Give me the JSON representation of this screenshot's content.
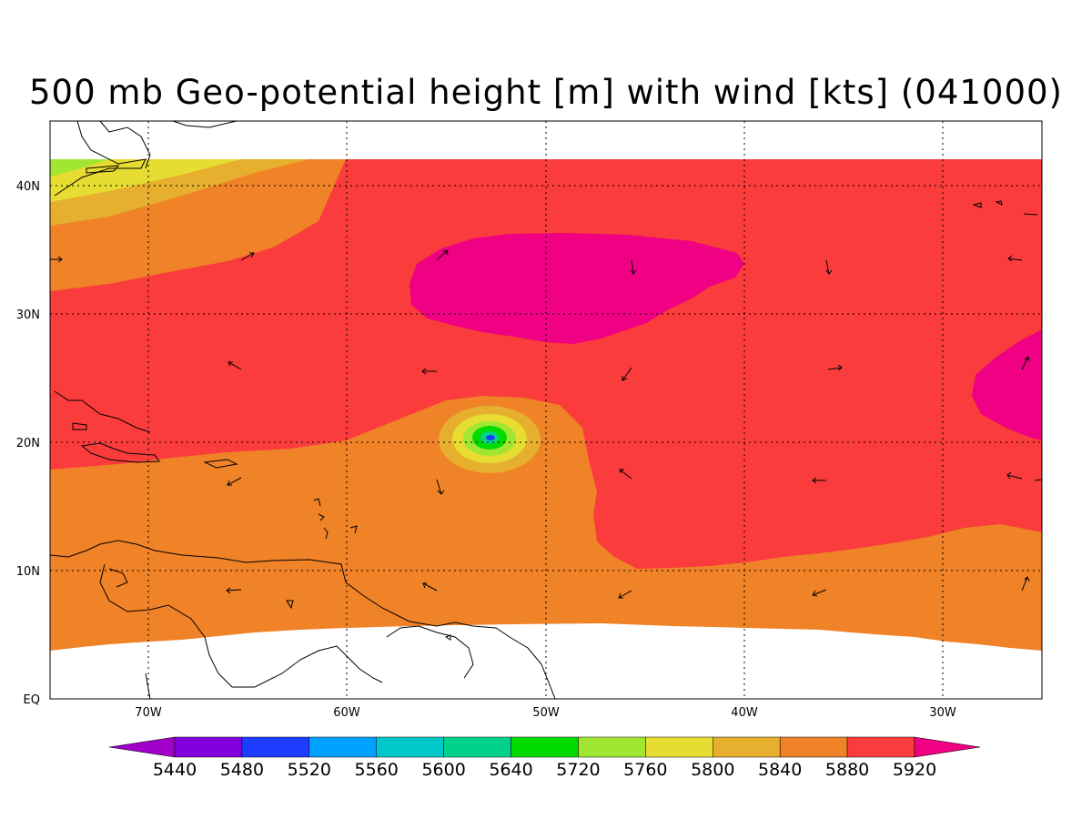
{
  "title": "500 mb Geo-potential height [m] with wind [kts] (041000)",
  "lat_labels": [
    "40N",
    "30N",
    "20N",
    "10N",
    "EQ"
  ],
  "lon_labels": [
    "70W",
    "60W",
    "50W",
    "40W",
    "30W"
  ],
  "colorbar": {
    "labels": [
      "5440",
      "5480",
      "5520",
      "5560",
      "5600",
      "5640",
      "5720",
      "5760",
      "5800",
      "5840",
      "5880",
      "5920"
    ],
    "colors": [
      "#a000c8",
      "#8200dc",
      "#1e3cff",
      "#00a0ff",
      "#00c8c8",
      "#00d28c",
      "#00dc00",
      "#a0e632",
      "#e6dc32",
      "#e6af2d",
      "#f08228",
      "#fa3c3c",
      "#f00082"
    ]
  },
  "field": {
    "colors": {
      "c5720": "#a0e632",
      "c5760": "#e6dc32",
      "c5800": "#e6af2d",
      "c5840": "#f08228",
      "c5880": "#fa3c3c",
      "c5920": "#f00082",
      "low_ring1": "#e6dc32",
      "low_ring2": "#a0e632",
      "low_ring3": "#00dc00",
      "low_ring4": "#00d28c",
      "low_core": "#1e3cff"
    }
  }
}
